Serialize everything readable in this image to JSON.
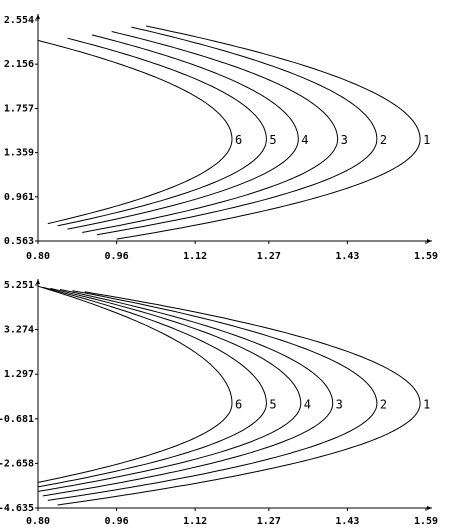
{
  "chart_data": [
    {
      "type": "line",
      "title": "",
      "xlabel": "",
      "ylabel": "",
      "xlim": [
        0.8,
        1.59
      ],
      "ylim": [
        0.563,
        2.554
      ],
      "x_ticks": [
        "0.80",
        "0.96",
        "1.12",
        "1.27",
        "1.43",
        "1.59"
      ],
      "y_ticks": [
        "0.563",
        "0.961",
        "1.359",
        "1.757",
        "2.156",
        "2.554"
      ],
      "vertex_y": 1.48,
      "series": [
        {
          "label": "1",
          "x_min": 1.578,
          "top": [
            1.02,
            2.5
          ],
          "bottom": [
            0.96,
            0.58
          ]
        },
        {
          "label": "2",
          "x_min": 1.49,
          "top": [
            0.99,
            2.49
          ],
          "bottom": [
            0.92,
            0.62
          ]
        },
        {
          "label": "3",
          "x_min": 1.41,
          "top": [
            0.95,
            2.45
          ],
          "bottom": [
            0.89,
            0.64
          ]
        },
        {
          "label": "4",
          "x_min": 1.33,
          "top": [
            0.91,
            2.42
          ],
          "bottom": [
            0.86,
            0.67
          ]
        },
        {
          "label": "5",
          "x_min": 1.265,
          "top": [
            0.86,
            2.39
          ],
          "bottom": [
            0.84,
            0.7
          ]
        },
        {
          "label": "6",
          "x_min": 1.195,
          "top": [
            0.8,
            2.37
          ],
          "bottom": [
            0.82,
            0.72
          ]
        }
      ]
    },
    {
      "type": "line",
      "title": "",
      "xlabel": "",
      "ylabel": "",
      "xlim": [
        0.8,
        1.59
      ],
      "ylim": [
        -4.635,
        5.251
      ],
      "x_ticks": [
        "0.80",
        "0.96",
        "1.12",
        "1.27",
        "1.43",
        "1.59"
      ],
      "y_ticks": [
        "-4.635",
        "-2.658",
        "-0.681",
        "1.297",
        "3.274",
        "5.251"
      ],
      "vertex_y": 0.0,
      "series": [
        {
          "label": "1",
          "x_min": 1.578,
          "top": [
            0.895,
            4.95
          ],
          "bottom": [
            0.84,
            -4.5
          ]
        },
        {
          "label": "2",
          "x_min": 1.49,
          "top": [
            0.87,
            5.0
          ],
          "bottom": [
            0.82,
            -4.3
          ]
        },
        {
          "label": "3",
          "x_min": 1.4,
          "top": [
            0.845,
            5.05
          ],
          "bottom": [
            0.81,
            -4.1
          ]
        },
        {
          "label": "4",
          "x_min": 1.335,
          "top": [
            0.825,
            5.1
          ],
          "bottom": [
            0.8,
            -3.9
          ]
        },
        {
          "label": "5",
          "x_min": 1.265,
          "top": [
            0.81,
            5.15
          ],
          "bottom": [
            0.8,
            -3.7
          ]
        },
        {
          "label": "6",
          "x_min": 1.195,
          "top": [
            0.8,
            5.2
          ],
          "bottom": [
            0.8,
            -3.5
          ]
        }
      ]
    }
  ]
}
